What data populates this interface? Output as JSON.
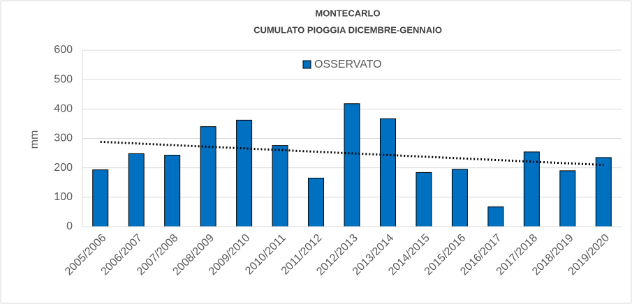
{
  "chart_data": {
    "type": "bar",
    "title": "MONTECARLO",
    "subtitle": "CUMULATO PIOGGIA DICEMBRE-GENNAIO",
    "y_label": "mm",
    "categories": [
      "2005/2006",
      "2006/2007",
      "2007/2008",
      "2008/2009",
      "2009/2010",
      "2010/2011",
      "2011/2012",
      "2012/2013",
      "2013/2014",
      "2014/2015",
      "2015/2016",
      "2016/2017",
      "2017/2018",
      "2018/2019",
      "2019/2020"
    ],
    "series": [
      {
        "name": "OSSERVATO",
        "color": "#0070c0",
        "values": [
          193,
          248,
          243,
          340,
          362,
          276,
          165,
          418,
          367,
          184,
          195,
          67,
          254,
          190,
          235
        ]
      }
    ],
    "ylim": [
      0,
      600
    ],
    "yticks": [
      0,
      100,
      200,
      300,
      400,
      500,
      600
    ],
    "grid": true,
    "trendline": true,
    "legend": "top"
  }
}
